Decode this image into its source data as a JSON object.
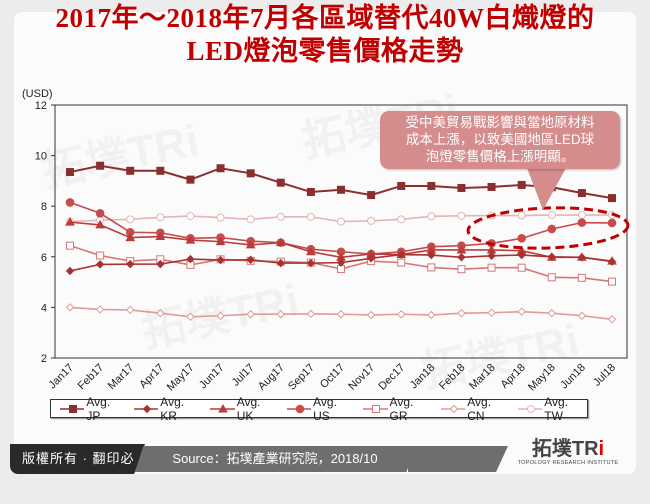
{
  "title": {
    "line1": "2017年～2018年7月各區域替代40W白熾燈的",
    "line2": "LED燈泡零售價格走勢"
  },
  "callout": {
    "line1": "受中美貿易戰影響與當地原材料",
    "line2": "成本上漲，以致美國地區LED球",
    "line3": "泡燈零售價格上漲明顯。"
  },
  "footer": {
    "copyright": "版權所有 · 翻印必究",
    "source": "Source：拓墣產業研究院，2018/10",
    "logo_text": "拓墣TRi",
    "logo_sub": "TOPOLOGY RESEARCH INSTITUTE"
  },
  "colors": {
    "title": "#c00000",
    "JP": "#8b2e2e",
    "KR": "#a83232",
    "UK": "#b83c3c",
    "US": "#c94a4a",
    "GR": "#d77676",
    "CN": "#df9a9a",
    "TW": "#e6b4b4",
    "highlight": "#c00000"
  },
  "chart_data": {
    "type": "line",
    "title": "2017年～2018年7月各區域替代40W白熾燈的LED燈泡零售價格走勢",
    "xlabel": "",
    "ylabel": "(USD)",
    "ylim": [
      2,
      12
    ],
    "yticks": [
      2,
      4,
      6,
      8,
      10,
      12
    ],
    "grid": false,
    "legend_position": "bottom",
    "categories": [
      "Jan17",
      "Feb17",
      "Mar17",
      "Apr17",
      "May17",
      "Jun17",
      "Jul17",
      "Aug17",
      "Sep17",
      "Oct17",
      "Nov17",
      "Dec17",
      "Jan18",
      "Feb18",
      "Mar18",
      "Apr18",
      "May18",
      "Jun18",
      "Jul18"
    ],
    "series": [
      {
        "name": "Avg. JP",
        "marker": "square",
        "values": [
          9.35,
          9.6,
          9.4,
          9.4,
          9.05,
          9.5,
          9.3,
          8.93,
          8.56,
          8.65,
          8.44,
          8.8,
          8.8,
          8.72,
          8.76,
          8.84,
          8.75,
          8.52,
          8.32
        ]
      },
      {
        "name": "Avg. KR",
        "marker": "diamond",
        "values": [
          5.44,
          5.7,
          5.71,
          5.71,
          5.91,
          5.87,
          5.88,
          5.75,
          5.75,
          5.77,
          5.94,
          6.09,
          6.07,
          5.98,
          6.04,
          6.07,
          6.0,
          5.98,
          5.81
        ]
      },
      {
        "name": "Avg. UK",
        "marker": "triangle",
        "values": [
          7.37,
          7.26,
          6.76,
          6.8,
          6.66,
          6.6,
          6.47,
          6.56,
          6.2,
          5.98,
          6.11,
          6.09,
          6.27,
          6.27,
          6.27,
          6.24,
          5.98,
          5.98,
          5.83
        ]
      },
      {
        "name": "Avg. US",
        "marker": "circle",
        "values": [
          8.15,
          7.72,
          6.97,
          6.95,
          6.73,
          6.76,
          6.62,
          6.56,
          6.3,
          6.2,
          6.11,
          6.2,
          6.4,
          6.44,
          6.53,
          6.73,
          7.1,
          7.35,
          7.34
        ]
      },
      {
        "name": "Avg. GR",
        "marker": "open-square",
        "values": [
          6.44,
          6.05,
          5.83,
          5.9,
          5.68,
          5.9,
          5.84,
          5.81,
          5.77,
          5.52,
          5.83,
          5.77,
          5.58,
          5.51,
          5.57,
          5.57,
          5.19,
          5.17,
          5.02
        ]
      },
      {
        "name": "Avg. CN",
        "marker": "open-diamond",
        "values": [
          4.0,
          3.92,
          3.9,
          3.77,
          3.63,
          3.67,
          3.73,
          3.73,
          3.74,
          3.73,
          3.7,
          3.73,
          3.7,
          3.77,
          3.79,
          3.83,
          3.77,
          3.67,
          3.53
        ]
      },
      {
        "name": "Avg. TW",
        "marker": "open-circle",
        "values": [
          7.39,
          7.45,
          7.48,
          7.56,
          7.61,
          7.55,
          7.48,
          7.58,
          7.58,
          7.39,
          7.42,
          7.48,
          7.6,
          7.62,
          7.63,
          7.63,
          7.65,
          7.65,
          7.65
        ]
      }
    ],
    "annotations": [
      {
        "type": "callout",
        "text": "受中美貿易戰影響與當地原材料成本上漲，以致美國地區LED球泡燈零售價格上漲明顯。"
      },
      {
        "type": "dashed-ellipse",
        "around": "Avg. US Mar18–Jul18"
      }
    ]
  }
}
